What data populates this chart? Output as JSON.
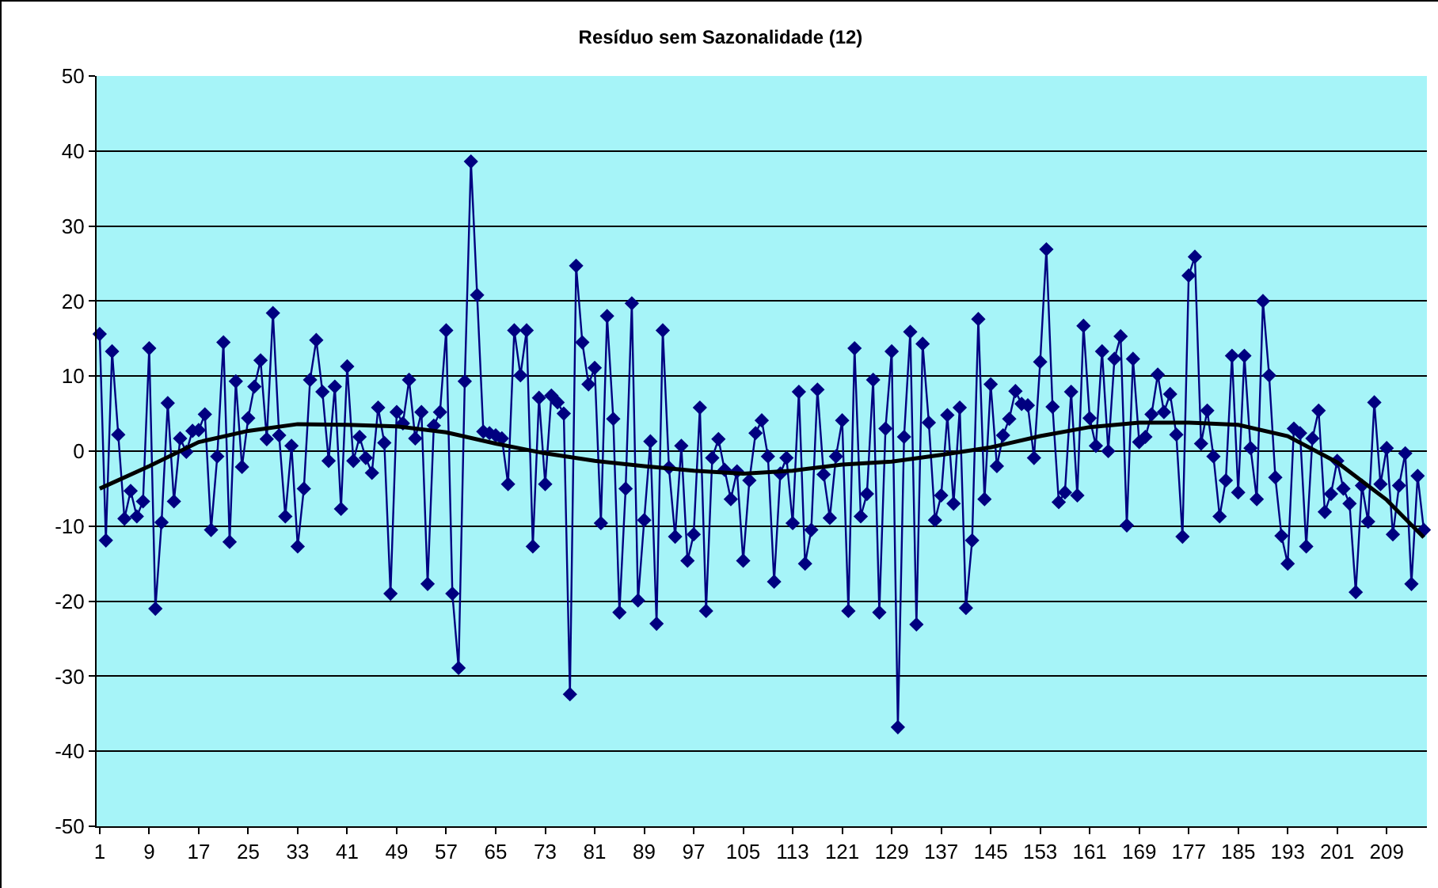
{
  "chart_data": {
    "type": "line",
    "title": "Resíduo sem Sazonalidade (12)",
    "x": [
      1,
      2,
      3,
      4,
      5,
      6,
      7,
      8,
      9,
      10,
      11,
      12,
      13,
      14,
      15,
      16,
      17,
      18,
      19,
      20,
      21,
      22,
      23,
      24,
      25,
      26,
      27,
      28,
      29,
      30,
      31,
      32,
      33,
      34,
      35,
      36,
      37,
      38,
      39,
      40,
      41,
      42,
      43,
      44,
      45,
      46,
      47,
      48,
      49,
      50,
      51,
      52,
      53,
      54,
      55,
      56,
      57,
      58,
      59,
      60,
      61,
      62,
      63,
      64,
      65,
      66,
      67,
      68,
      69,
      70,
      71,
      72,
      73,
      74,
      75,
      76,
      77,
      78,
      79,
      80,
      81,
      82,
      83,
      84,
      85,
      86,
      87,
      88,
      89,
      90,
      91,
      92,
      93,
      94,
      95,
      96,
      97,
      98,
      99,
      100,
      101,
      102,
      103,
      104,
      105,
      106,
      107,
      108,
      109,
      110,
      111,
      112,
      113,
      114,
      115,
      116,
      117,
      118,
      119,
      120,
      121,
      122,
      123,
      124,
      125,
      126,
      127,
      128,
      129,
      130,
      131,
      132,
      133,
      134,
      135,
      136,
      137,
      138,
      139,
      140,
      141,
      142,
      143,
      144,
      145,
      146,
      147,
      148,
      149,
      150,
      151,
      152,
      153,
      154,
      155,
      156,
      157,
      158,
      159,
      160,
      161,
      162,
      163,
      164,
      165,
      166,
      167,
      168,
      169,
      170,
      171,
      172,
      173,
      174,
      175,
      176,
      177,
      178,
      179,
      180,
      181,
      182,
      183,
      184,
      185,
      186,
      187,
      188,
      189,
      190,
      191,
      192,
      193,
      194,
      195,
      196,
      197,
      198,
      199,
      200,
      201,
      202,
      203,
      204,
      205,
      206,
      207,
      208,
      209,
      210,
      211,
      212,
      213,
      214,
      215
    ],
    "series": [
      {
        "color": "#000080",
        "marker": "diamond",
        "values": [
          15.6,
          -11.9,
          13.3,
          2.2,
          -9,
          -5.3,
          -8.7,
          -6.7,
          13.7,
          -21,
          -9.5,
          6.4,
          -6.7,
          1.7,
          -0.1,
          2.7,
          2.8,
          4.9,
          -10.5,
          -0.7,
          14.5,
          -12.1,
          9.3,
          -2.1,
          4.4,
          8.6,
          12.1,
          1.6,
          18.4,
          2.1,
          -8.7,
          0.7,
          -12.7,
          -5.0,
          9.5,
          14.8,
          7.9,
          -1.3,
          8.6,
          -7.7,
          11.3,
          -1.3,
          1.9,
          -0.9,
          -2.9,
          5.8,
          1.1,
          -19,
          5.2,
          3.7,
          9.5,
          1.7,
          5.2,
          -17.7,
          3.4,
          5.2,
          16.1,
          -19,
          -28.9,
          9.3,
          38.6,
          20.8,
          2.6,
          2.4,
          2.1,
          1.7,
          -4.4,
          16.1,
          10.1,
          16.1,
          -12.7,
          7.1,
          -4.4,
          7.4,
          6.5,
          5.0,
          -32.4,
          24.7,
          14.5,
          8.9,
          11.1,
          -9.6,
          18,
          4.3,
          -21.5,
          -5.0,
          19.7,
          -19.9,
          -9.2,
          1.3,
          -23,
          16.1,
          -2.2,
          -11.4,
          0.7,
          -14.6,
          -11.1,
          5.8,
          -21.3,
          -0.9,
          1.6,
          -2.5,
          -6.4,
          -2.7,
          -14.6,
          -3.9,
          2.4,
          4.1,
          -0.7,
          -17.4,
          -3.0,
          -0.9,
          -9.6,
          7.9,
          -15,
          -10.5,
          8.2,
          -3.1,
          -8.9,
          -0.7,
          4.1,
          -21.3,
          13.7,
          -8.7,
          -5.7,
          9.5,
          -21.5,
          3.0,
          13.3,
          -36.8,
          1.9,
          15.9,
          -23.1,
          14.3,
          3.8,
          -9.2,
          -5.9,
          4.8,
          -7.0,
          5.8,
          -20.9,
          -11.9,
          17.6,
          -6.4,
          8.9,
          -2.0,
          2.1,
          4.3,
          8.0,
          6.3,
          6.1,
          -0.9,
          11.9,
          26.9,
          5.9,
          -6.8,
          -5.5,
          7.9,
          -5.9,
          16.7,
          4.4,
          0.7,
          13.3,
          0,
          12.3,
          15.3,
          -9.9,
          12.3,
          1.2,
          1.9,
          4.9,
          10.2,
          5.2,
          7.6,
          2.2,
          -11.4,
          23.4,
          25.9,
          1.0,
          5.4,
          -0.7,
          -8.7,
          -3.9,
          12.7,
          -5.5,
          12.7,
          0.4,
          -6.4,
          20,
          10.1,
          -3.5,
          -11.3,
          -15,
          3.0,
          2.4,
          -12.7,
          1.7,
          5.4,
          -8.1,
          -5.7,
          -1.3,
          -5.0,
          -7.0,
          -18.8,
          -4.6,
          -9.4,
          6.5,
          -4.4,
          0.4,
          -11.1,
          -4.6,
          -0.3,
          -17.7,
          -3.3,
          -10.5
        ]
      },
      {
        "type": "line",
        "color": "#000000",
        "marker": "none",
        "x": [
          1,
          9,
          17,
          25,
          33,
          41,
          49,
          57,
          65,
          73,
          81,
          89,
          97,
          105,
          113,
          121,
          129,
          137,
          145,
          153,
          161,
          169,
          177,
          185,
          193,
          201,
          209,
          215
        ],
        "values": [
          -5,
          -2,
          1.2,
          2.7,
          3.6,
          3.5,
          3.3,
          2.5,
          1,
          -0.3,
          -1.3,
          -2,
          -2.6,
          -3,
          -2.6,
          -1.8,
          -1.4,
          -0.5,
          0.5,
          2,
          3.2,
          3.8,
          3.8,
          3.5,
          2,
          -1.5,
          -6.5,
          -11.5
        ]
      }
    ],
    "xlim": [
      0.5,
      215.5
    ],
    "xticks": [
      1,
      9,
      17,
      25,
      33,
      41,
      49,
      57,
      65,
      73,
      81,
      89,
      97,
      105,
      113,
      121,
      129,
      137,
      145,
      153,
      161,
      169,
      177,
      185,
      193,
      201,
      209
    ],
    "ylim": [
      -50,
      50
    ],
    "yticks": [
      -50,
      -40,
      -30,
      -20,
      -10,
      0,
      10,
      20,
      30,
      40,
      50
    ],
    "grid": "y"
  }
}
